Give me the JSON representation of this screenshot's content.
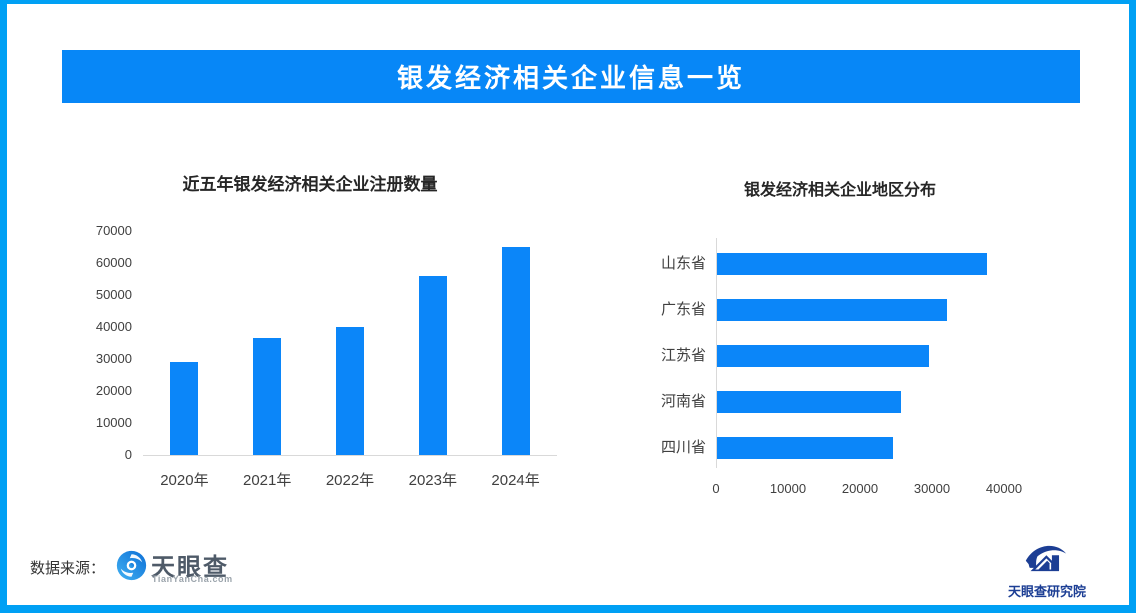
{
  "header": {
    "title": "银发经济相关企业信息一览"
  },
  "colors": {
    "accent": "#0b86f9",
    "banner": "#0787f7",
    "border": "#00a0f4",
    "axis_line": "#d9d9d9",
    "navy": "#1c3e94"
  },
  "icons": {
    "tianyancha_logo": "eye-swirl-icon",
    "institute_logo": "swoosh-building-icon"
  },
  "chart_data": [
    {
      "type": "bar",
      "orientation": "vertical",
      "title": "近五年银发经济相关企业注册数量",
      "categories": [
        "2020年",
        "2021年",
        "2022年",
        "2023年",
        "2024年"
      ],
      "values": [
        29000,
        36500,
        40000,
        56000,
        65000
      ],
      "ylabel": "",
      "xlabel": "",
      "ylim": [
        0,
        70000
      ],
      "ytick_step": 10000,
      "grid": false,
      "legend": "none"
    },
    {
      "type": "bar",
      "orientation": "horizontal",
      "title": "银发经济相关企业地区分布",
      "categories": [
        "山东省",
        "广东省",
        "江苏省",
        "河南省",
        "四川省"
      ],
      "values": [
        37500,
        32000,
        29500,
        25500,
        24500
      ],
      "ylabel": "",
      "xlabel": "",
      "xlim": [
        0,
        40000
      ],
      "xtick_step": 10000,
      "grid": false,
      "legend": "none"
    }
  ],
  "footer": {
    "source_label": "数据来源：",
    "tianyancha": {
      "wordmark": "天眼查",
      "domain": "TianYanCha.com"
    },
    "institute": {
      "label": "天眼查研究院"
    }
  }
}
